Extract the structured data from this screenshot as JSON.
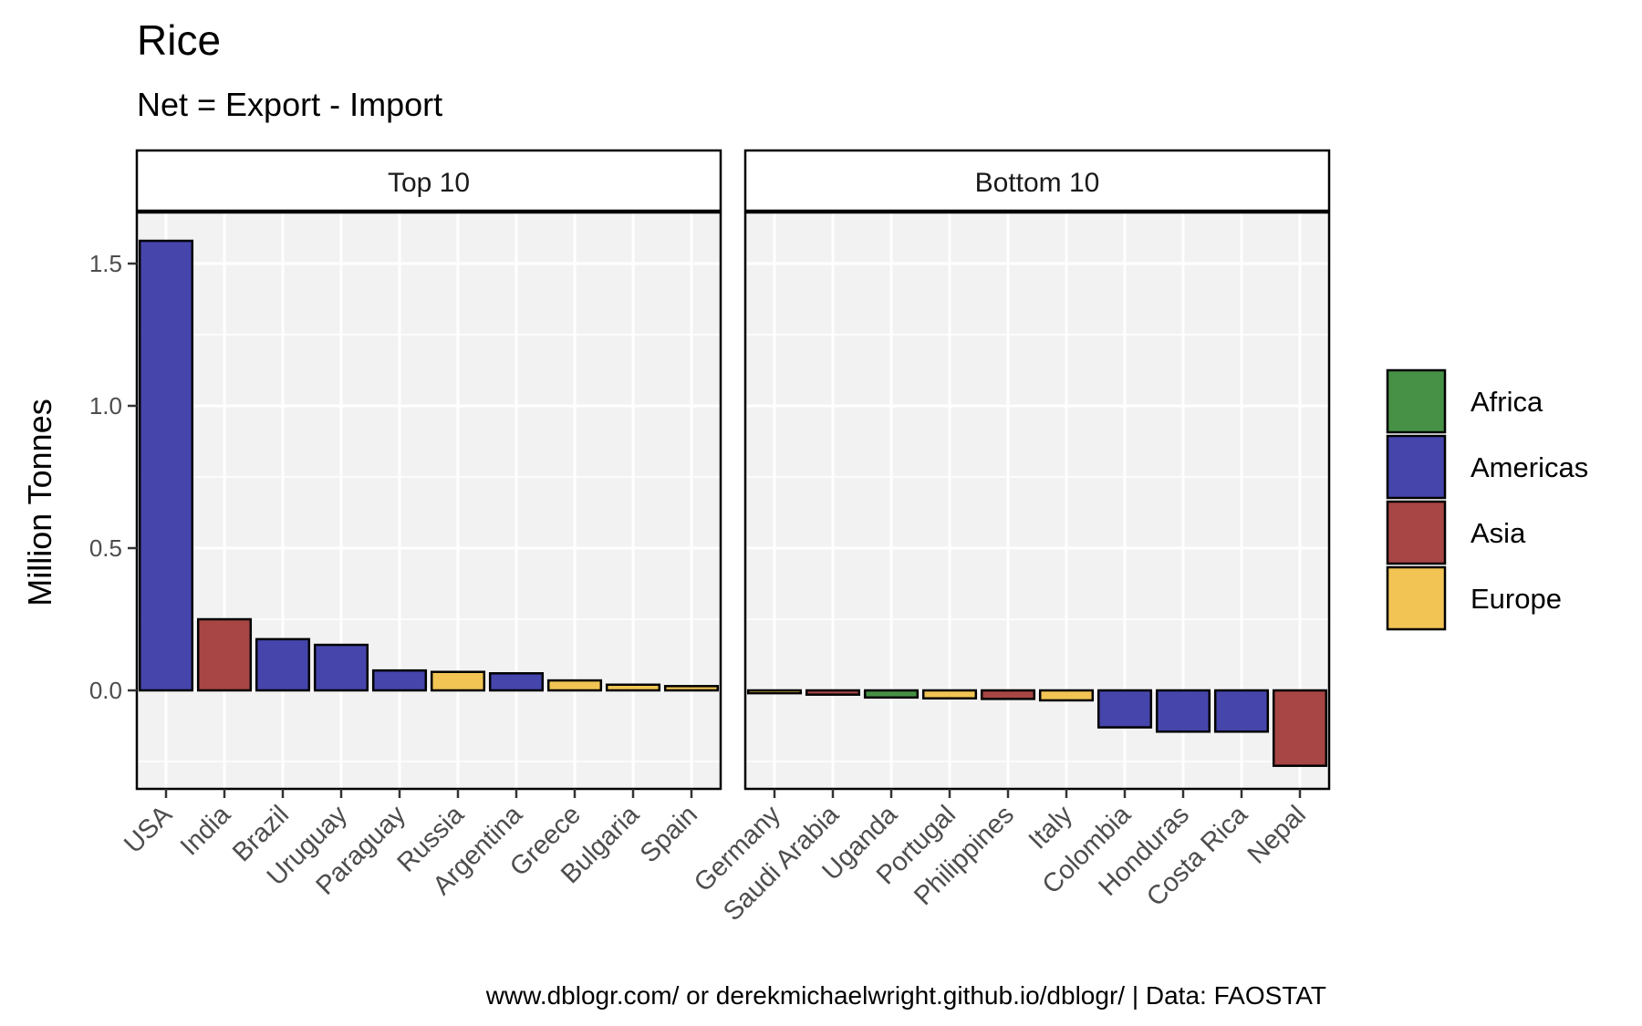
{
  "chart_data": {
    "type": "bar",
    "title": "Rice",
    "subtitle": "Net = Export - Import",
    "ylabel": "Million Tonnes",
    "xlabel": "",
    "ylim": [
      -0.35,
      1.65
    ],
    "yticks": [
      0.0,
      0.5,
      1.0,
      1.5
    ],
    "ytick_labels": [
      "0.0",
      "0.5",
      "1.0",
      "1.5"
    ],
    "grid": true,
    "legend_position": "right",
    "caption": "www.dblogr.com/ or derekmichaelwright.github.io/dblogr/ | Data: FAOSTAT",
    "region_colors": {
      "Africa": "#3d8b3d",
      "Americas": "#3b3ba8",
      "Asia": "#a33b3b",
      "Europe": "#f0c14b"
    },
    "legend": [
      "Africa",
      "Americas",
      "Asia",
      "Europe"
    ],
    "panels": [
      {
        "label": "Top 10",
        "categories": [
          "USA",
          "India",
          "Brazil",
          "Uruguay",
          "Paraguay",
          "Russia",
          "Argentina",
          "Greece",
          "Bulgaria",
          "Spain"
        ],
        "values": [
          1.58,
          0.25,
          0.18,
          0.16,
          0.07,
          0.065,
          0.06,
          0.035,
          0.02,
          0.015
        ],
        "regions": [
          "Americas",
          "Asia",
          "Americas",
          "Americas",
          "Americas",
          "Europe",
          "Americas",
          "Europe",
          "Europe",
          "Europe"
        ]
      },
      {
        "label": "Bottom 10",
        "categories": [
          "Germany",
          "Saudi Arabia",
          "Uganda",
          "Portugal",
          "Philippines",
          "Italy",
          "Colombia",
          "Honduras",
          "Costa Rica",
          "Nepal"
        ],
        "values": [
          -0.01,
          -0.015,
          -0.025,
          -0.028,
          -0.03,
          -0.035,
          -0.13,
          -0.145,
          -0.145,
          -0.265
        ],
        "regions": [
          "Europe",
          "Asia",
          "Africa",
          "Europe",
          "Asia",
          "Europe",
          "Americas",
          "Americas",
          "Americas",
          "Asia"
        ]
      }
    ]
  }
}
